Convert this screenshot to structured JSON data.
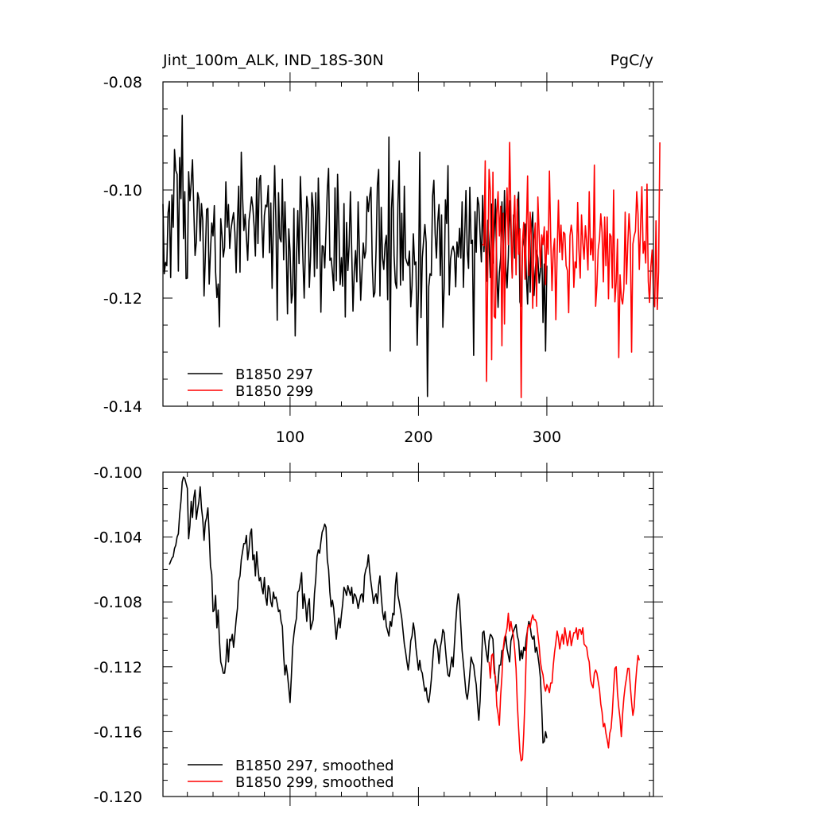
{
  "chart_data": [
    {
      "type": "line",
      "title_left": "Jint_100m_ALK, IND_18S-30N",
      "title_right": "PgC/y",
      "xlim": [
        1,
        383
      ],
      "ylim": [
        -0.14,
        -0.08
      ],
      "yticks": [
        -0.14,
        -0.12,
        -0.1,
        -0.08
      ],
      "ytick_labels": [
        "-0.14",
        "-0.12",
        "-0.10",
        "-0.08"
      ],
      "xticks": [
        100,
        200,
        300
      ],
      "xtick_labels": [
        "100",
        "200",
        "300"
      ],
      "grid": false,
      "legend_position": "bottom-left",
      "series": [
        {
          "name": "B1850 297",
          "color": "#000000",
          "x_start": 1,
          "values": [
            -0.1026,
            -0.1155,
            -0.1134,
            -0.114,
            -0.1042,
            -0.1021,
            -0.1162,
            -0.1009,
            -0.1069,
            -0.0925,
            -0.0964,
            -0.0971,
            -0.115,
            -0.094,
            -0.1016,
            -0.0862,
            -0.109,
            -0.1003,
            -0.1164,
            -0.1163,
            -0.0966,
            -0.102,
            -0.0987,
            -0.0944,
            -0.1034,
            -0.1121,
            -0.1096,
            -0.1005,
            -0.1017,
            -0.1094,
            -0.1025,
            -0.1057,
            -0.1196,
            -0.1123,
            -0.1036,
            -0.1034,
            -0.1174,
            -0.1114,
            -0.1061,
            -0.1085,
            -0.1029,
            -0.1152,
            -0.1199,
            -0.1174,
            -0.1253,
            -0.1053,
            -0.1084,
            -0.1124,
            -0.1106,
            -0.0985,
            -0.1069,
            -0.1027,
            -0.1108,
            -0.1073,
            -0.1056,
            -0.1042,
            -0.1079,
            -0.1153,
            -0.1058,
            -0.0993,
            -0.1152,
            -0.093,
            -0.1013,
            -0.1075,
            -0.1045,
            -0.1087,
            -0.113,
            -0.1057,
            -0.1036,
            -0.1013,
            -0.1032,
            -0.1067,
            -0.1122,
            -0.0978,
            -0.1099,
            -0.0982,
            -0.0973,
            -0.1059,
            -0.1125,
            -0.1047,
            -0.1028,
            -0.1031,
            -0.0992,
            -0.1116,
            -0.1024,
            -0.1182,
            -0.1062,
            -0.0955,
            -0.1061,
            -0.1241,
            -0.1005,
            -0.1089,
            -0.1096,
            -0.098,
            -0.1129,
            -0.1022,
            -0.1105,
            -0.1229,
            -0.1072,
            -0.1114,
            -0.1209,
            -0.1191,
            -0.1034,
            -0.127,
            -0.1128,
            -0.1038,
            -0.1136,
            -0.0975,
            -0.1042,
            -0.1128,
            -0.12,
            -0.1102,
            -0.1012,
            -0.1034,
            -0.118,
            -0.1122,
            -0.1005,
            -0.1034,
            -0.116,
            -0.1005,
            -0.1145,
            -0.0978,
            -0.1065,
            -0.1226,
            -0.1103,
            -0.1105,
            -0.1144,
            -0.1075,
            -0.1,
            -0.096,
            -0.113,
            -0.1126,
            -0.1152,
            -0.1186,
            -0.0996,
            -0.1168,
            -0.0971,
            -0.1064,
            -0.1175,
            -0.1125,
            -0.1178,
            -0.1025,
            -0.1235,
            -0.106,
            -0.1149,
            -0.1103,
            -0.1003,
            -0.1112,
            -0.1224,
            -0.1151,
            -0.1112,
            -0.117,
            -0.1022,
            -0.1112,
            -0.1204,
            -0.1152,
            -0.1098,
            -0.1126,
            -0.1113,
            -0.1012,
            -0.104,
            -0.1011,
            -0.0995,
            -0.1135,
            -0.1198,
            -0.119,
            -0.111,
            -0.0991,
            -0.0962,
            -0.1196,
            -0.1032,
            -0.1126,
            -0.1147,
            -0.1101,
            -0.1084,
            -0.1203,
            -0.0902,
            -0.1298,
            -0.1035,
            -0.0982,
            -0.1122,
            -0.1171,
            -0.1182,
            -0.1025,
            -0.0946,
            -0.1176,
            -0.1043,
            -0.1167,
            -0.0993,
            -0.1126,
            -0.1134,
            -0.114,
            -0.1113,
            -0.1216,
            -0.1177,
            -0.1081,
            -0.1138,
            -0.1133,
            -0.1287,
            -0.1181,
            -0.093,
            -0.1236,
            -0.1125,
            -0.1094,
            -0.1064,
            -0.1097,
            -0.1382,
            -0.1179,
            -0.1155,
            -0.1158,
            -0.1011,
            -0.0982,
            -0.1081,
            -0.1126,
            -0.1059,
            -0.1027,
            -0.1158,
            -0.1046,
            -0.1254,
            -0.1179,
            -0.1018,
            -0.1062,
            -0.0955,
            -0.1194,
            -0.1128,
            -0.1111,
            -0.1104,
            -0.1116,
            -0.1179,
            -0.1096,
            -0.1124,
            -0.1071,
            -0.1126,
            -0.1022,
            -0.118,
            -0.1085,
            -0.1001,
            -0.1112,
            -0.1145,
            -0.0995,
            -0.1099,
            -0.1093,
            -0.1306,
            -0.104,
            -0.1115,
            -0.1014,
            -0.1027,
            -0.1082,
            -0.1133,
            -0.101,
            -0.1114,
            -0.1061,
            -0.1169,
            -0.1056,
            -0.11,
            -0.1162,
            -0.1026,
            -0.1135,
            -0.1083,
            -0.1017,
            -0.1149,
            -0.1217,
            -0.1153,
            -0.1126,
            -0.1022,
            -0.1135,
            -0.1001,
            -0.1141,
            -0.1181,
            -0.1123,
            -0.102,
            -0.1076,
            -0.116,
            -0.1046,
            -0.1126,
            -0.1124,
            -0.1033,
            -0.1004,
            -0.1207,
            -0.1215,
            -0.1105,
            -0.109,
            -0.1063,
            -0.1157,
            -0.1211,
            -0.1102,
            -0.1189,
            -0.1071,
            -0.1041,
            -0.1195,
            -0.1149,
            -0.1112,
            -0.1126,
            -0.1172,
            -0.1149,
            -0.1097,
            -0.1245,
            -0.1137,
            -0.1298,
            -0.114
          ]
        },
        {
          "name": "B1850 299",
          "color": "#ff0000",
          "x_start": 250,
          "values": [
            -0.11,
            -0.1103,
            -0.0946,
            -0.1354,
            -0.1143,
            -0.0962,
            -0.1003,
            -0.1314,
            -0.0967,
            -0.1234,
            -0.1237,
            -0.1045,
            -0.1003,
            -0.1085,
            -0.103,
            -0.1288,
            -0.1043,
            -0.1248,
            -0.107,
            -0.0996,
            -0.1101,
            -0.0912,
            -0.1044,
            -0.1163,
            -0.1063,
            -0.101,
            -0.1157,
            -0.1017,
            -0.1119,
            -0.1072,
            -0.1384,
            -0.1096,
            -0.106,
            -0.1165,
            -0.1078,
            -0.0974,
            -0.1158,
            -0.1041,
            -0.1093,
            -0.1219,
            -0.1093,
            -0.1061,
            -0.1215,
            -0.1013,
            -0.1082,
            -0.1143,
            -0.1083,
            -0.1101,
            -0.1068,
            -0.1175,
            -0.1076,
            -0.1119,
            -0.0965,
            -0.1088,
            -0.1186,
            -0.1113,
            -0.109,
            -0.124,
            -0.1117,
            -0.1019,
            -0.1115,
            -0.1065,
            -0.1129,
            -0.1078,
            -0.1081,
            -0.114,
            -0.1149,
            -0.1227,
            -0.1085,
            -0.1065,
            -0.1084,
            -0.118,
            -0.1133,
            -0.1144,
            -0.1023,
            -0.1112,
            -0.1163,
            -0.1046,
            -0.1097,
            -0.1128,
            -0.1066,
            -0.1097,
            -0.1148,
            -0.1003,
            -0.112,
            -0.109,
            -0.113,
            -0.0954,
            -0.1215,
            -0.1176,
            -0.111,
            -0.1091,
            -0.1044,
            -0.1078,
            -0.117,
            -0.105,
            -0.114,
            -0.105,
            -0.1201,
            -0.1081,
            -0.1086,
            -0.1181,
            -0.1,
            -0.1207,
            -0.117,
            -0.1091,
            -0.131,
            -0.1157,
            -0.12,
            -0.1211,
            -0.1182,
            -0.1041,
            -0.1174,
            -0.1102,
            -0.1044,
            -0.1088,
            -0.13,
            -0.11,
            -0.1085,
            -0.1076,
            -0.1003,
            -0.1045,
            -0.1147,
            -0.1066,
            -0.0994,
            -0.1117,
            -0.1095,
            -0.1135,
            -0.0989,
            -0.1169,
            -0.1208,
            -0.1142,
            -0.1111,
            -0.1192,
            -0.1216,
            -0.1057,
            -0.1221,
            -0.1151,
            -0.0912
          ]
        }
      ]
    },
    {
      "type": "line",
      "xlim": [
        1,
        383
      ],
      "ylim": [
        -0.12,
        -0.1
      ],
      "yticks": [
        -0.12,
        -0.116,
        -0.112,
        -0.108,
        -0.104,
        -0.1
      ],
      "ytick_labels": [
        "-0.120",
        "-0.116",
        "-0.112",
        "-0.108",
        "-0.104",
        "-0.100"
      ],
      "grid": false,
      "legend_position": "bottom-left",
      "series": [
        {
          "name": "B1850 297, smoothed",
          "color": "#000000",
          "x_start": 6,
          "values": [
            -0.1057,
            -0.1055,
            -0.1053,
            -0.1052,
            -0.1047,
            -0.1045,
            -0.104,
            -0.1038,
            -0.1026,
            -0.1018,
            -0.1006,
            -0.1003,
            -0.1004,
            -0.1007,
            -0.101,
            -0.1041,
            -0.1033,
            -0.1018,
            -0.1028,
            -0.1016,
            -0.1011,
            -0.1029,
            -0.1023,
            -0.1018,
            -0.1009,
            -0.1022,
            -0.1029,
            -0.1042,
            -0.1031,
            -0.1028,
            -0.1022,
            -0.1038,
            -0.1058,
            -0.1063,
            -0.1086,
            -0.1085,
            -0.1076,
            -0.1096,
            -0.1085,
            -0.1104,
            -0.1117,
            -0.112,
            -0.1124,
            -0.1124,
            -0.1117,
            -0.1103,
            -0.1117,
            -0.1103,
            -0.1104,
            -0.11,
            -0.1108,
            -0.11,
            -0.1091,
            -0.1084,
            -0.1067,
            -0.1064,
            -0.1054,
            -0.1049,
            -0.1044,
            -0.1044,
            -0.1039,
            -0.1054,
            -0.1048,
            -0.1038,
            -0.1035,
            -0.1054,
            -0.1051,
            -0.1064,
            -0.1049,
            -0.1059,
            -0.1067,
            -0.1065,
            -0.1071,
            -0.1075,
            -0.1065,
            -0.1077,
            -0.1082,
            -0.107,
            -0.1072,
            -0.108,
            -0.1083,
            -0.1074,
            -0.1078,
            -0.1077,
            -0.1081,
            -0.1086,
            -0.1085,
            -0.1092,
            -0.1095,
            -0.1113,
            -0.1125,
            -0.1119,
            -0.1125,
            -0.1133,
            -0.1142,
            -0.1126,
            -0.1108,
            -0.11,
            -0.1094,
            -0.109,
            -0.1074,
            -0.1073,
            -0.1068,
            -0.1062,
            -0.1084,
            -0.1075,
            -0.1081,
            -0.1092,
            -0.1082,
            -0.1078,
            -0.1097,
            -0.1094,
            -0.1091,
            -0.1075,
            -0.1066,
            -0.1052,
            -0.1048,
            -0.105,
            -0.1043,
            -0.1037,
            -0.1035,
            -0.1032,
            -0.1034,
            -0.1054,
            -0.106,
            -0.1074,
            -0.1083,
            -0.1079,
            -0.1084,
            -0.1094,
            -0.1103,
            -0.1095,
            -0.109,
            -0.1096,
            -0.1088,
            -0.1081,
            -0.1071,
            -0.1073,
            -0.1076,
            -0.107,
            -0.1073,
            -0.1076,
            -0.1071,
            -0.1081,
            -0.1075,
            -0.1076,
            -0.1079,
            -0.1084,
            -0.108,
            -0.1076,
            -0.1075,
            -0.108,
            -0.1064,
            -0.106,
            -0.1058,
            -0.1051,
            -0.1061,
            -0.1068,
            -0.1074,
            -0.1081,
            -0.1077,
            -0.1075,
            -0.1081,
            -0.107,
            -0.1064,
            -0.1076,
            -0.1086,
            -0.1091,
            -0.1086,
            -0.1095,
            -0.1098,
            -0.1101,
            -0.1092,
            -0.1095,
            -0.1087,
            -0.1088,
            -0.107,
            -0.1062,
            -0.1076,
            -0.108,
            -0.1085,
            -0.109,
            -0.1098,
            -0.1106,
            -0.1111,
            -0.1117,
            -0.1122,
            -0.1115,
            -0.1104,
            -0.1101,
            -0.1093,
            -0.1098,
            -0.1108,
            -0.1115,
            -0.1122,
            -0.1116,
            -0.1122,
            -0.1124,
            -0.113,
            -0.1135,
            -0.1133,
            -0.114,
            -0.1142,
            -0.1136,
            -0.1128,
            -0.1117,
            -0.1107,
            -0.1103,
            -0.1105,
            -0.1109,
            -0.1118,
            -0.1108,
            -0.1104,
            -0.1097,
            -0.1099,
            -0.1109,
            -0.1118,
            -0.1125,
            -0.1126,
            -0.112,
            -0.1114,
            -0.112,
            -0.1106,
            -0.1093,
            -0.1082,
            -0.1075,
            -0.108,
            -0.1095,
            -0.111,
            -0.1118,
            -0.1127,
            -0.1136,
            -0.114,
            -0.1134,
            -0.1124,
            -0.1114,
            -0.1117,
            -0.1119,
            -0.1126,
            -0.1131,
            -0.1143,
            -0.1153,
            -0.1141,
            -0.112,
            -0.1099,
            -0.1098,
            -0.1106,
            -0.1112,
            -0.1117,
            -0.1104,
            -0.11,
            -0.1101,
            -0.1103,
            -0.1119,
            -0.1129,
            -0.1135,
            -0.113,
            -0.1119,
            -0.1119,
            -0.111,
            -0.111,
            -0.1105,
            -0.1101,
            -0.1109,
            -0.1113,
            -0.1117,
            -0.1104,
            -0.1101,
            -0.1098,
            -0.1096,
            -0.1094,
            -0.1101,
            -0.1104,
            -0.1116,
            -0.111,
            -0.1115,
            -0.1108,
            -0.111,
            -0.1102,
            -0.1097,
            -0.1092,
            -0.1095,
            -0.1101,
            -0.1103,
            -0.1101,
            -0.1111,
            -0.1108,
            -0.1113,
            -0.1119,
            -0.1127,
            -0.1145,
            -0.1167,
            -0.1166,
            -0.116,
            -0.1164
          ]
        },
        {
          "name": "B1850 299, smoothed",
          "color": "#ff0000",
          "x_start": 255,
          "values": [
            -0.1117,
            -0.1127,
            -0.1113,
            -0.1112,
            -0.1124,
            -0.1126,
            -0.1144,
            -0.1149,
            -0.1156,
            -0.1138,
            -0.1126,
            -0.1109,
            -0.1102,
            -0.11,
            -0.1096,
            -0.1087,
            -0.1098,
            -0.1092,
            -0.1097,
            -0.1101,
            -0.111,
            -0.1121,
            -0.1143,
            -0.1158,
            -0.1172,
            -0.1178,
            -0.1177,
            -0.1161,
            -0.1139,
            -0.111,
            -0.1096,
            -0.1094,
            -0.1096,
            -0.1091,
            -0.1088,
            -0.1091,
            -0.1091,
            -0.1093,
            -0.11,
            -0.1107,
            -0.1117,
            -0.1122,
            -0.1125,
            -0.1132,
            -0.1135,
            -0.1131,
            -0.1133,
            -0.1136,
            -0.113,
            -0.113,
            -0.1119,
            -0.1111,
            -0.1105,
            -0.1098,
            -0.1102,
            -0.1109,
            -0.1104,
            -0.11,
            -0.1106,
            -0.1096,
            -0.1101,
            -0.1107,
            -0.1103,
            -0.1098,
            -0.1107,
            -0.1103,
            -0.1099,
            -0.1099,
            -0.1096,
            -0.1103,
            -0.1097,
            -0.1097,
            -0.11,
            -0.1096,
            -0.1106,
            -0.1107,
            -0.1108,
            -0.1114,
            -0.1117,
            -0.1128,
            -0.1131,
            -0.1133,
            -0.1124,
            -0.1122,
            -0.1124,
            -0.1129,
            -0.1134,
            -0.1143,
            -0.1148,
            -0.1157,
            -0.1155,
            -0.1161,
            -0.1165,
            -0.117,
            -0.1161,
            -0.1158,
            -0.1148,
            -0.1133,
            -0.1121,
            -0.112,
            -0.1136,
            -0.1145,
            -0.1152,
            -0.1163,
            -0.1149,
            -0.1139,
            -0.1132,
            -0.1127,
            -0.1121,
            -0.1121,
            -0.1132,
            -0.1142,
            -0.115,
            -0.1145,
            -0.1131,
            -0.1121,
            -0.1113,
            -0.1116
          ]
        }
      ]
    }
  ]
}
